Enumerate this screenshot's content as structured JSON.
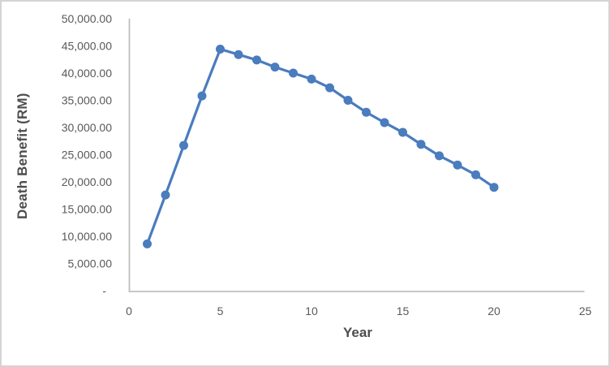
{
  "chart_data": {
    "type": "line",
    "title": "",
    "xlabel": "Year",
    "ylabel": "Death Benefit (RM)",
    "x": [
      1,
      2,
      3,
      4,
      5,
      6,
      7,
      8,
      9,
      10,
      11,
      12,
      13,
      14,
      15,
      16,
      17,
      18,
      19,
      20
    ],
    "series": [
      {
        "name": "Death Benefit (RM)",
        "values": [
          8600,
          17600,
          26700,
          35800,
          44400,
          43400,
          42400,
          41100,
          40000,
          38900,
          37300,
          35000,
          32800,
          30900,
          29100,
          26900,
          24800,
          23100,
          21300,
          19000
        ]
      }
    ],
    "xlim": [
      0,
      25
    ],
    "ylim": [
      0,
      50000
    ],
    "x_tick_values": [
      0,
      5,
      10,
      15,
      20,
      25
    ],
    "x_tick_labels": [
      "0",
      "5",
      "10",
      "15",
      "20",
      "25"
    ],
    "y_tick_values": [
      0,
      5000,
      10000,
      15000,
      20000,
      25000,
      30000,
      35000,
      40000,
      45000,
      50000
    ],
    "y_tick_labels": [
      "-",
      "5,000.00",
      "10,000.00",
      "15,000.00",
      "20,000.00",
      "25,000.00",
      "30,000.00",
      "35,000.00",
      "40,000.00",
      "45,000.00",
      "50,000.00"
    ],
    "grid": "off",
    "legend": "none",
    "marker": "circle",
    "colors": {
      "series": "#4a7cbe",
      "axis_line": "#bfbfbf",
      "tick_text": "#595959",
      "title_text": "#4d4d4d",
      "background": "#ffffff",
      "border": "#d4d4d4"
    }
  }
}
